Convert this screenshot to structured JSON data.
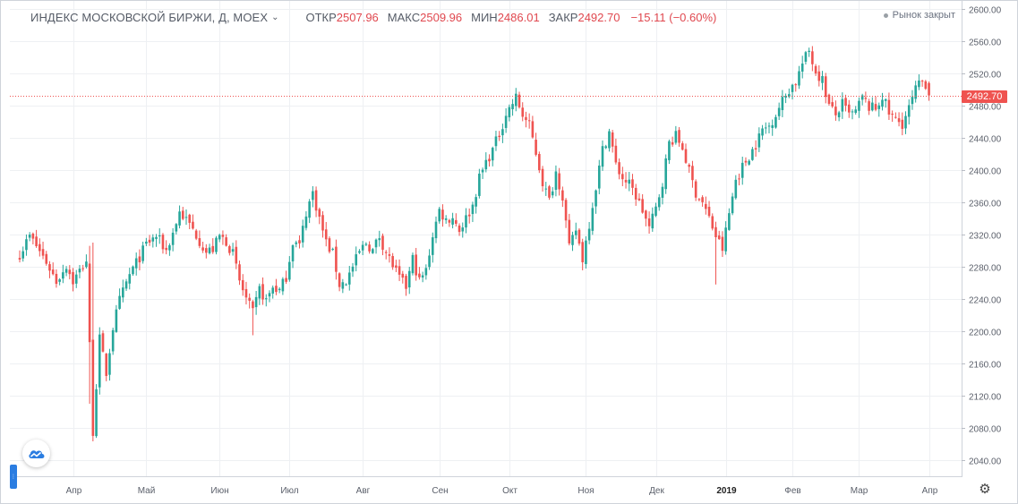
{
  "legend": {
    "symbol": "ИНДЕКС МОСКОВСКОЙ БИРЖИ, Д, MOEX",
    "open_label": "ОТКР",
    "open_value": "2507.96",
    "high_label": "МАКС",
    "high_value": "2509.96",
    "low_label": "МИН",
    "low_value": "2486.01",
    "close_label": "ЗАКР",
    "close_value": "2492.70",
    "change": "−15.11 (−0.60%)"
  },
  "market_status": "Рынок закрыт",
  "last_price_label": "2492.70",
  "colors": {
    "up": "#26a69a",
    "down": "#ef5350",
    "grid": "#eef0f3",
    "axis_text": "#5a5f6a"
  },
  "chart_data": {
    "type": "candlestick",
    "title": "ИНДЕКС МОСКОВСКОЙ БИРЖИ, Д, MOEX",
    "ylim": [
      2020,
      2610
    ],
    "y_ticks": [
      2040,
      2080,
      2120,
      2160,
      2200,
      2240,
      2280,
      2320,
      2360,
      2400,
      2440,
      2480,
      2520,
      2560,
      2600
    ],
    "y_tick_labels": [
      "2040.00",
      "2080.00",
      "2120.00",
      "2160.00",
      "2200.00",
      "2240.00",
      "2280.00",
      "2320.00",
      "2360.00",
      "2400.00",
      "2440.00",
      "2480.00",
      "2520.00",
      "2560.00",
      "2600.00"
    ],
    "x_ticks": [
      {
        "label": "Апр",
        "idx": 16,
        "bold": false
      },
      {
        "label": "Май",
        "idx": 38,
        "bold": false
      },
      {
        "label": "Июн",
        "idx": 60,
        "bold": false
      },
      {
        "label": "Июл",
        "idx": 81,
        "bold": false
      },
      {
        "label": "Авг",
        "idx": 103,
        "bold": false
      },
      {
        "label": "Сен",
        "idx": 126,
        "bold": false
      },
      {
        "label": "Окт",
        "idx": 147,
        "bold": false
      },
      {
        "label": "Ноя",
        "idx": 170,
        "bold": false
      },
      {
        "label": "Дек",
        "idx": 191,
        "bold": false
      },
      {
        "label": "2019",
        "idx": 212,
        "bold": true
      },
      {
        "label": "Фев",
        "idx": 232,
        "bold": false
      },
      {
        "label": "Мар",
        "idx": 252,
        "bold": false
      },
      {
        "label": "Апр",
        "idx": 273,
        "bold": false
      }
    ],
    "last_price": 2492.7,
    "num_slots": 276,
    "close_path": [
      [
        0,
        2296
      ],
      [
        3,
        2318
      ],
      [
        5,
        2306
      ],
      [
        8,
        2286
      ],
      [
        11,
        2262
      ],
      [
        14,
        2282
      ],
      [
        16,
        2262
      ],
      [
        18,
        2275
      ],
      [
        20,
        2288
      ],
      [
        22,
        2076
      ],
      [
        24,
        2190
      ],
      [
        26,
        2148
      ],
      [
        28,
        2205
      ],
      [
        30,
        2238
      ],
      [
        33,
        2270
      ],
      [
        36,
        2292
      ],
      [
        38,
        2308
      ],
      [
        41,
        2318
      ],
      [
        44,
        2300
      ],
      [
        46,
        2322
      ],
      [
        48,
        2348
      ],
      [
        50,
        2338
      ],
      [
        53,
        2320
      ],
      [
        56,
        2298
      ],
      [
        58,
        2302
      ],
      [
        60,
        2318
      ],
      [
        62,
        2312
      ],
      [
        64,
        2296
      ],
      [
        66,
        2262
      ],
      [
        68,
        2240
      ],
      [
        70,
        2222
      ],
      [
        72,
        2252
      ],
      [
        74,
        2238
      ],
      [
        76,
        2255
      ],
      [
        78,
        2250
      ],
      [
        80,
        2268
      ],
      [
        82,
        2312
      ],
      [
        84,
        2306
      ],
      [
        86,
        2348
      ],
      [
        88,
        2372
      ],
      [
        90,
        2340
      ],
      [
        92,
        2310
      ],
      [
        94,
        2296
      ],
      [
        96,
        2258
      ],
      [
        98,
        2262
      ],
      [
        100,
        2280
      ],
      [
        102,
        2298
      ],
      [
        104,
        2310
      ],
      [
        106,
        2300
      ],
      [
        108,
        2318
      ],
      [
        110,
        2298
      ],
      [
        112,
        2282
      ],
      [
        114,
        2265
      ],
      [
        116,
        2255
      ],
      [
        118,
        2290
      ],
      [
        120,
        2262
      ],
      [
        122,
        2275
      ],
      [
        124,
        2320
      ],
      [
        126,
        2350
      ],
      [
        128,
        2338
      ],
      [
        130,
        2342
      ],
      [
        132,
        2326
      ],
      [
        134,
        2340
      ],
      [
        136,
        2356
      ],
      [
        138,
        2390
      ],
      [
        140,
        2410
      ],
      [
        142,
        2425
      ],
      [
        144,
        2445
      ],
      [
        146,
        2470
      ],
      [
        148,
        2483
      ],
      [
        149,
        2490
      ],
      [
        151,
        2468
      ],
      [
        153,
        2455
      ],
      [
        155,
        2422
      ],
      [
        157,
        2385
      ],
      [
        159,
        2362
      ],
      [
        161,
        2398
      ],
      [
        163,
        2368
      ],
      [
        165,
        2302
      ],
      [
        167,
        2326
      ],
      [
        169,
        2290
      ],
      [
        171,
        2334
      ],
      [
        173,
        2380
      ],
      [
        175,
        2425
      ],
      [
        177,
        2448
      ],
      [
        179,
        2406
      ],
      [
        181,
        2390
      ],
      [
        183,
        2382
      ],
      [
        185,
        2368
      ],
      [
        187,
        2350
      ],
      [
        189,
        2328
      ],
      [
        191,
        2352
      ],
      [
        193,
        2386
      ],
      [
        195,
        2434
      ],
      [
        197,
        2442
      ],
      [
        199,
        2428
      ],
      [
        201,
        2398
      ],
      [
        203,
        2372
      ],
      [
        205,
        2360
      ],
      [
        207,
        2340
      ],
      [
        209,
        2318
      ],
      [
        211,
        2302
      ],
      [
        213,
        2346
      ],
      [
        215,
        2388
      ],
      [
        217,
        2404
      ],
      [
        219,
        2418
      ],
      [
        221,
        2432
      ],
      [
        223,
        2450
      ],
      [
        225,
        2455
      ],
      [
        227,
        2470
      ],
      [
        229,
        2486
      ],
      [
        231,
        2500
      ],
      [
        233,
        2510
      ],
      [
        235,
        2532
      ],
      [
        237,
        2548
      ],
      [
        239,
        2522
      ],
      [
        241,
        2512
      ],
      [
        243,
        2480
      ],
      [
        245,
        2468
      ],
      [
        247,
        2482
      ],
      [
        249,
        2468
      ],
      [
        251,
        2472
      ],
      [
        253,
        2490
      ],
      [
        255,
        2478
      ],
      [
        257,
        2476
      ],
      [
        259,
        2492
      ],
      [
        261,
        2470
      ],
      [
        263,
        2462
      ],
      [
        265,
        2458
      ],
      [
        267,
        2476
      ],
      [
        269,
        2500
      ],
      [
        271,
        2510
      ],
      [
        272,
        2507
      ],
      [
        273,
        2492.7
      ]
    ],
    "last_candle": {
      "idx": 273,
      "open": 2507.96,
      "high": 2509.96,
      "low": 2486.01,
      "close": 2492.7
    }
  }
}
